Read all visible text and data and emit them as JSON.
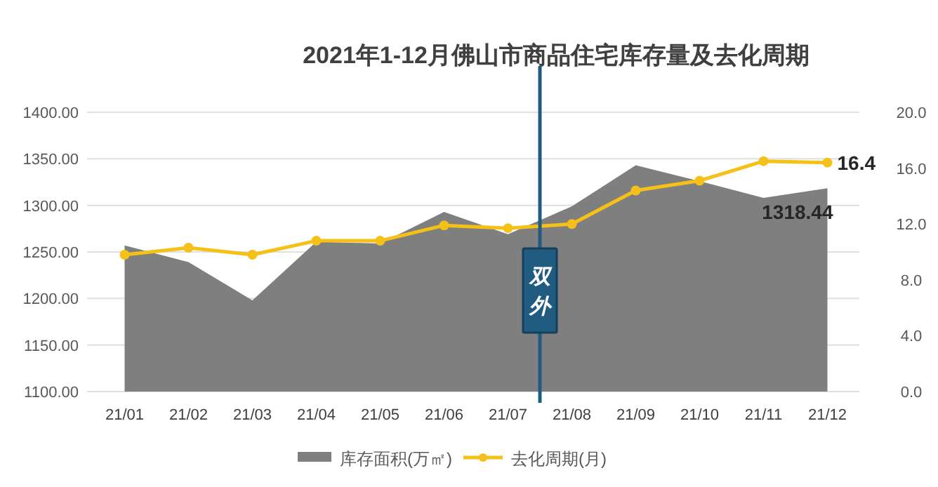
{
  "chart_data": {
    "type": "area",
    "title": "2021年1-12月佛山市商品住宅库存量及去化周期",
    "categories": [
      "21/01",
      "21/02",
      "21/03",
      "21/04",
      "21/05",
      "21/06",
      "21/07",
      "21/08",
      "21/09",
      "21/10",
      "21/11",
      "21/12"
    ],
    "series": [
      {
        "name": "库存面积(万㎡)",
        "color": "#7f7f7f",
        "values": [
          1257,
          1239,
          1198,
          1261,
          1259,
          1293,
          1269,
          1299,
          1343,
          1326,
          1308,
          1318.44
        ],
        "value_labels": [
          null,
          null,
          null,
          null,
          null,
          null,
          null,
          null,
          null,
          null,
          null,
          "1318.44"
        ]
      },
      {
        "name": "去化周期(月)",
        "type": "line",
        "axis": "y2",
        "color": "#f5c018",
        "marker": "circle",
        "values": [
          9.8,
          10.3,
          9.8,
          10.8,
          10.8,
          11.9,
          11.7,
          12.0,
          14.4,
          15.1,
          16.5,
          16.4
        ],
        "value_labels": [
          null,
          null,
          null,
          null,
          null,
          null,
          null,
          null,
          null,
          null,
          null,
          "16.4"
        ]
      }
    ],
    "ylim": [
      1100,
      1400
    ],
    "yticks": [
      {
        "value": 1100,
        "label": "1100.00"
      },
      {
        "value": 1150,
        "label": "1150.00"
      },
      {
        "value": 1200,
        "label": "1200.00"
      },
      {
        "value": 1250,
        "label": "1250.00"
      },
      {
        "value": 1300,
        "label": "1300.00"
      },
      {
        "value": 1350,
        "label": "1350.00"
      },
      {
        "value": 1400,
        "label": "1400.00"
      }
    ],
    "y2lim": [
      0,
      20
    ],
    "y2ticks": [
      {
        "value": 0,
        "label": "0.0"
      },
      {
        "value": 4,
        "label": "4.0"
      },
      {
        "value": 8,
        "label": "8.0"
      },
      {
        "value": 12,
        "label": "12.0"
      },
      {
        "value": 16,
        "label": "16.0"
      },
      {
        "value": 20,
        "label": "20.0"
      }
    ],
    "annotations": [
      "双外"
    ],
    "grid": "y",
    "legend": "bottom"
  }
}
